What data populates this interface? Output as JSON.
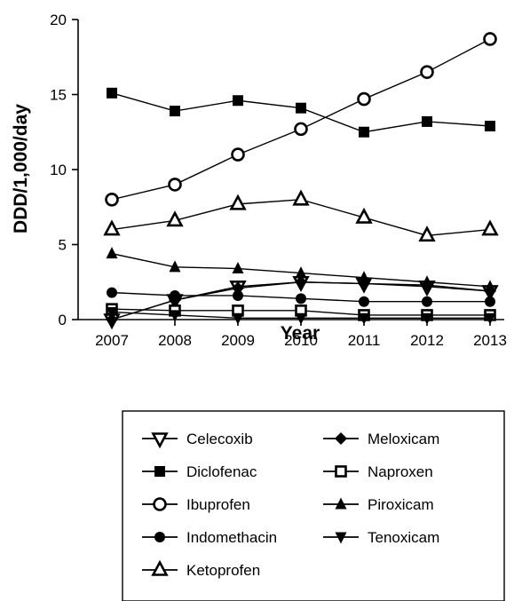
{
  "chart_data": {
    "type": "line",
    "title": "",
    "xlabel": "Year",
    "ylabel": "DDD/1,000/day",
    "x": [
      "2007",
      "2008",
      "2009",
      "2010",
      "2011",
      "2012",
      "2013"
    ],
    "ylim": [
      0,
      20
    ],
    "yticks": [
      "0",
      "5",
      "10",
      "15",
      "20"
    ],
    "grid": false,
    "legend_position": "bottom",
    "series": [
      {
        "name": "Celecoxib",
        "marker": "triangle-down-open",
        "values": [
          0.0,
          1.3,
          2.2,
          2.5,
          2.4,
          2.2,
          1.9
        ]
      },
      {
        "name": "Diclofenac",
        "marker": "square-filled",
        "values": [
          15.1,
          13.9,
          14.6,
          14.1,
          12.5,
          13.2,
          12.9
        ]
      },
      {
        "name": "Ibuprofen",
        "marker": "circle-open",
        "values": [
          8.0,
          9.0,
          11.0,
          12.7,
          14.7,
          16.5,
          18.7
        ]
      },
      {
        "name": "Indomethacin",
        "marker": "circle-filled",
        "values": [
          1.8,
          1.6,
          1.6,
          1.4,
          1.2,
          1.2,
          1.2
        ]
      },
      {
        "name": "Ketoprofen",
        "marker": "triangle-up-open",
        "values": [
          6.0,
          6.6,
          7.7,
          8.0,
          6.8,
          5.6,
          6.0
        ]
      },
      {
        "name": "Meloxicam",
        "marker": "diamond-filled",
        "values": [
          0.0,
          1.3,
          2.1,
          2.5,
          2.4,
          2.3,
          1.9
        ]
      },
      {
        "name": "Naproxen",
        "marker": "square-open",
        "values": [
          0.7,
          0.6,
          0.6,
          0.6,
          0.3,
          0.3,
          0.3
        ]
      },
      {
        "name": "Piroxicam",
        "marker": "triangle-up-filled",
        "values": [
          4.4,
          3.5,
          3.4,
          3.1,
          2.8,
          2.5,
          2.2
        ]
      },
      {
        "name": "Tenoxicam",
        "marker": "triangle-down-filled",
        "values": [
          0.5,
          0.3,
          0.1,
          0.1,
          0.1,
          0.1,
          0.1
        ]
      }
    ],
    "legend_layout": [
      [
        "Celecoxib",
        "Meloxicam"
      ],
      [
        "Diclofenac",
        "Naproxen"
      ],
      [
        "Ibuprofen",
        "Piroxicam"
      ],
      [
        "Indomethacin",
        "Tenoxicam"
      ],
      [
        "Ketoprofen",
        null
      ]
    ]
  }
}
